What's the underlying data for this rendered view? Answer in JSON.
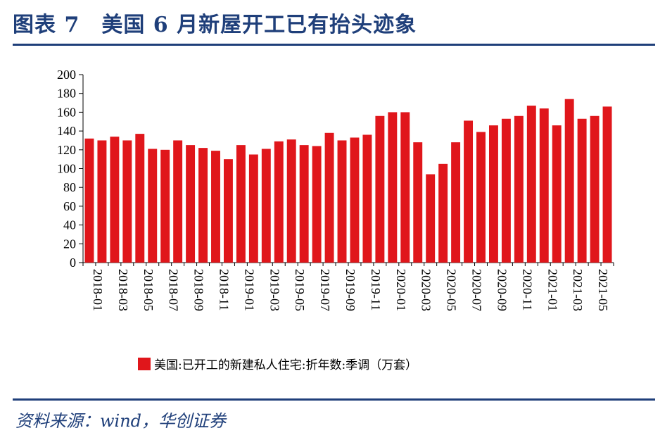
{
  "header": {
    "title": "图表 7　美国 6 月新屋开工已有抬头迹象"
  },
  "footer": {
    "source": "资料来源：wind，华创证券"
  },
  "colors": {
    "bar": "#e0161b",
    "accent": "#1f3f7a"
  },
  "chart_data": {
    "type": "bar",
    "title": "",
    "xlabel": "",
    "ylabel": "",
    "ylim": [
      0,
      200
    ],
    "yticks": [
      0,
      20,
      40,
      60,
      80,
      100,
      120,
      140,
      160,
      180,
      200
    ],
    "categories": [
      "2018-01",
      "2018-02",
      "2018-03",
      "2018-04",
      "2018-05",
      "2018-06",
      "2018-07",
      "2018-08",
      "2018-09",
      "2018-10",
      "2018-11",
      "2018-12",
      "2019-01",
      "2019-02",
      "2019-03",
      "2019-04",
      "2019-05",
      "2019-06",
      "2019-07",
      "2019-08",
      "2019-09",
      "2019-10",
      "2019-11",
      "2019-12",
      "2020-01",
      "2020-02",
      "2020-03",
      "2020-04",
      "2020-05",
      "2020-06",
      "2020-07",
      "2020-08",
      "2020-09",
      "2020-10",
      "2020-11",
      "2020-12",
      "2021-01",
      "2021-02",
      "2021-03",
      "2021-04",
      "2021-05",
      "2021-06"
    ],
    "tick_labels": [
      "2018-01",
      "2018-03",
      "2018-05",
      "2018-07",
      "2018-09",
      "2018-11",
      "2019-01",
      "2019-03",
      "2019-05",
      "2019-07",
      "2019-09",
      "2019-11",
      "2020-01",
      "2020-03",
      "2020-05",
      "2020-07",
      "2020-09",
      "2020-11",
      "2021-01",
      "2021-03",
      "2021-05"
    ],
    "series": [
      {
        "name": "美国:已开工的新建私人住宅:折年数:季调（万套）",
        "values": [
          132,
          130,
          134,
          130,
          137,
          121,
          120,
          130,
          125,
          122,
          119,
          110,
          125,
          115,
          121,
          129,
          131,
          125,
          124,
          138,
          130,
          133,
          136,
          156,
          160,
          160,
          128,
          94,
          105,
          128,
          151,
          139,
          146,
          153,
          156,
          167,
          164,
          146,
          174,
          153,
          156,
          166
        ]
      }
    ],
    "legend": "bottom-center"
  }
}
